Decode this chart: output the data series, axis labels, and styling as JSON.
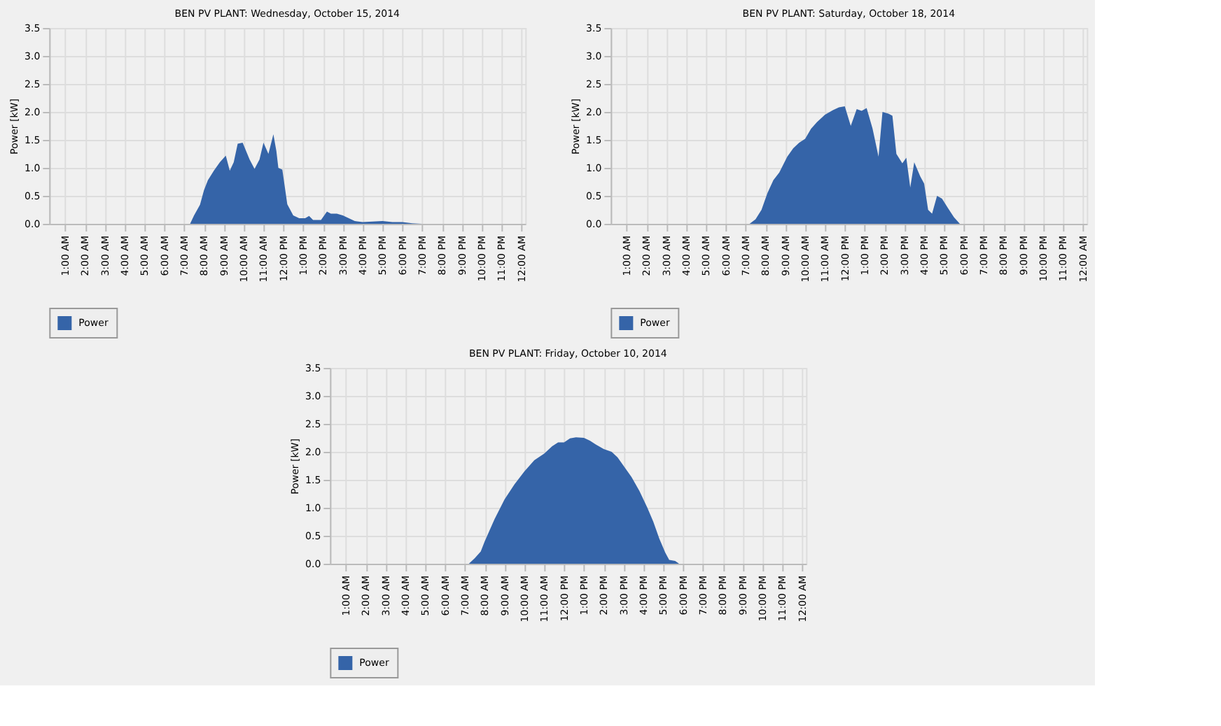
{
  "chart_data": [
    {
      "type": "area",
      "title": "BEN PV PLANT: Wednesday, October 15, 2014",
      "ylabel": "Power [kW]",
      "x": [
        0.25,
        7.3,
        7.5,
        7.8,
        8.0,
        8.2,
        8.5,
        8.8,
        9.1,
        9.3,
        9.5,
        9.7,
        9.95,
        10.3,
        10.55,
        10.8,
        11.0,
        11.25,
        11.5,
        11.65,
        11.75,
        11.95,
        12.2,
        12.5,
        12.8,
        13.1,
        13.3,
        13.5,
        13.9,
        14.2,
        14.4,
        14.7,
        15.0,
        15.3,
        15.6,
        16.0,
        16.5,
        17.0,
        17.5,
        18.0,
        18.5,
        19.0,
        24.2
      ],
      "series": [
        {
          "name": "Power",
          "color": "#3564a8",
          "values": [
            0,
            0,
            0.15,
            0.34,
            0.6,
            0.78,
            0.95,
            1.1,
            1.22,
            0.95,
            1.1,
            1.43,
            1.45,
            1.15,
            0.98,
            1.15,
            1.45,
            1.25,
            1.6,
            1.3,
            1.0,
            0.97,
            0.35,
            0.15,
            0.1,
            0.1,
            0.14,
            0.07,
            0.07,
            0.22,
            0.18,
            0.18,
            0.15,
            0.1,
            0.05,
            0.03,
            0.04,
            0.05,
            0.03,
            0.03,
            0.01,
            0,
            0
          ]
        }
      ],
      "xlim": [
        0.2,
        24.2
      ],
      "xticks": [
        {
          "value": 1,
          "label": "1:00 AM"
        },
        {
          "value": 2,
          "label": "2:00 AM"
        },
        {
          "value": 3,
          "label": "3:00 AM"
        },
        {
          "value": 4,
          "label": "4:00 AM"
        },
        {
          "value": 5,
          "label": "5:00 AM"
        },
        {
          "value": 6,
          "label": "6:00 AM"
        },
        {
          "value": 7,
          "label": "7:00 AM"
        },
        {
          "value": 8,
          "label": "8:00 AM"
        },
        {
          "value": 9,
          "label": "9:00 AM"
        },
        {
          "value": 10,
          "label": "10:00 AM"
        },
        {
          "value": 11,
          "label": "11:00 AM"
        },
        {
          "value": 12,
          "label": "12:00 PM"
        },
        {
          "value": 13,
          "label": "1:00 PM"
        },
        {
          "value": 14,
          "label": "2:00 PM"
        },
        {
          "value": 15,
          "label": "3:00 PM"
        },
        {
          "value": 16,
          "label": "4:00 PM"
        },
        {
          "value": 17,
          "label": "5:00 PM"
        },
        {
          "value": 18,
          "label": "6:00 PM"
        },
        {
          "value": 19,
          "label": "7:00 PM"
        },
        {
          "value": 20,
          "label": "8:00 PM"
        },
        {
          "value": 21,
          "label": "9:00 PM"
        },
        {
          "value": 22,
          "label": "10:00 PM"
        },
        {
          "value": 23,
          "label": "11:00 PM"
        },
        {
          "value": 24,
          "label": "12:00 AM"
        }
      ],
      "ylim": [
        0,
        3.5
      ],
      "yticks": [
        {
          "value": 0,
          "label": "0.0"
        },
        {
          "value": 0.5,
          "label": "0.5"
        },
        {
          "value": 1,
          "label": "1.0"
        },
        {
          "value": 1.5,
          "label": "1.5"
        },
        {
          "value": 2,
          "label": "2.0"
        },
        {
          "value": 2.5,
          "label": "2.5"
        },
        {
          "value": 3,
          "label": "3.0"
        },
        {
          "value": 3.5,
          "label": "3.5"
        }
      ],
      "grid": true,
      "legend": "bottom"
    },
    {
      "type": "area",
      "title": "BEN PV PLANT: Saturday, October 18, 2014",
      "ylabel": "Power [kW]",
      "x": [
        0.25,
        7.2,
        7.5,
        7.8,
        8.1,
        8.4,
        8.7,
        9.1,
        9.4,
        9.7,
        10.0,
        10.3,
        10.6,
        11.0,
        11.4,
        11.7,
        12.0,
        12.3,
        12.6,
        12.85,
        13.1,
        13.4,
        13.7,
        13.9,
        14.2,
        14.4,
        14.6,
        14.9,
        15.1,
        15.3,
        15.5,
        15.8,
        16.0,
        16.2,
        16.4,
        16.65,
        16.9,
        17.2,
        17.5,
        17.8,
        24.2
      ],
      "series": [
        {
          "name": "Power",
          "color": "#3564a8",
          "values": [
            0,
            0,
            0.08,
            0.25,
            0.55,
            0.78,
            0.92,
            1.2,
            1.35,
            1.45,
            1.52,
            1.7,
            1.82,
            1.95,
            2.03,
            2.08,
            2.1,
            1.75,
            2.05,
            2.02,
            2.07,
            1.7,
            1.2,
            2.0,
            1.97,
            1.93,
            1.25,
            1.08,
            1.18,
            0.65,
            1.1,
            0.85,
            0.72,
            0.25,
            0.18,
            0.5,
            0.45,
            0.28,
            0.12,
            0,
            0
          ]
        }
      ],
      "xlim": [
        0.2,
        24.2
      ],
      "xticks": [
        {
          "value": 1,
          "label": "1:00 AM"
        },
        {
          "value": 2,
          "label": "2:00 AM"
        },
        {
          "value": 3,
          "label": "3:00 AM"
        },
        {
          "value": 4,
          "label": "4:00 AM"
        },
        {
          "value": 5,
          "label": "5:00 AM"
        },
        {
          "value": 6,
          "label": "6:00 AM"
        },
        {
          "value": 7,
          "label": "7:00 AM"
        },
        {
          "value": 8,
          "label": "8:00 AM"
        },
        {
          "value": 9,
          "label": "9:00 AM"
        },
        {
          "value": 10,
          "label": "10:00 AM"
        },
        {
          "value": 11,
          "label": "11:00 AM"
        },
        {
          "value": 12,
          "label": "12:00 PM"
        },
        {
          "value": 13,
          "label": "1:00 PM"
        },
        {
          "value": 14,
          "label": "2:00 PM"
        },
        {
          "value": 15,
          "label": "3:00 PM"
        },
        {
          "value": 16,
          "label": "4:00 PM"
        },
        {
          "value": 17,
          "label": "5:00 PM"
        },
        {
          "value": 18,
          "label": "6:00 PM"
        },
        {
          "value": 19,
          "label": "7:00 PM"
        },
        {
          "value": 20,
          "label": "8:00 PM"
        },
        {
          "value": 21,
          "label": "9:00 PM"
        },
        {
          "value": 22,
          "label": "10:00 PM"
        },
        {
          "value": 23,
          "label": "11:00 PM"
        },
        {
          "value": 24,
          "label": "12:00 AM"
        }
      ],
      "ylim": [
        0,
        3.5
      ],
      "yticks": [
        {
          "value": 0,
          "label": "0.0"
        },
        {
          "value": 0.5,
          "label": "0.5"
        },
        {
          "value": 1,
          "label": "1.0"
        },
        {
          "value": 1.5,
          "label": "1.5"
        },
        {
          "value": 2,
          "label": "2.0"
        },
        {
          "value": 2.5,
          "label": "2.5"
        },
        {
          "value": 3,
          "label": "3.0"
        },
        {
          "value": 3.5,
          "label": "3.5"
        }
      ],
      "grid": true,
      "legend": "bottom"
    },
    {
      "type": "area",
      "title": "BEN PV PLANT: Friday, October 10, 2014",
      "ylabel": "Power [kW]",
      "x": [
        0.25,
        7.2,
        7.5,
        7.8,
        8.0,
        8.5,
        9.0,
        9.5,
        10.0,
        10.5,
        11.0,
        11.4,
        11.7,
        12.0,
        12.3,
        12.6,
        13.0,
        13.3,
        13.6,
        14.0,
        14.4,
        14.7,
        15.0,
        15.4,
        15.8,
        16.2,
        16.5,
        16.8,
        17.1,
        17.3,
        17.6,
        17.8,
        24.2
      ],
      "series": [
        {
          "name": "Power",
          "color": "#3564a8",
          "values": [
            0,
            0,
            0.1,
            0.22,
            0.4,
            0.8,
            1.15,
            1.42,
            1.65,
            1.85,
            1.97,
            2.1,
            2.17,
            2.17,
            2.24,
            2.26,
            2.25,
            2.2,
            2.13,
            2.05,
            2.0,
            1.9,
            1.75,
            1.55,
            1.3,
            1.0,
            0.75,
            0.45,
            0.2,
            0.07,
            0.05,
            0,
            0
          ]
        }
      ],
      "xlim": [
        0.2,
        24.2
      ],
      "xticks": [
        {
          "value": 1,
          "label": "1:00 AM"
        },
        {
          "value": 2,
          "label": "2:00 AM"
        },
        {
          "value": 3,
          "label": "3:00 AM"
        },
        {
          "value": 4,
          "label": "4:00 AM"
        },
        {
          "value": 5,
          "label": "5:00 AM"
        },
        {
          "value": 6,
          "label": "6:00 AM"
        },
        {
          "value": 7,
          "label": "7:00 AM"
        },
        {
          "value": 8,
          "label": "8:00 AM"
        },
        {
          "value": 9,
          "label": "9:00 AM"
        },
        {
          "value": 10,
          "label": "10:00 AM"
        },
        {
          "value": 11,
          "label": "11:00 AM"
        },
        {
          "value": 12,
          "label": "12:00 PM"
        },
        {
          "value": 13,
          "label": "1:00 PM"
        },
        {
          "value": 14,
          "label": "2:00 PM"
        },
        {
          "value": 15,
          "label": "3:00 PM"
        },
        {
          "value": 16,
          "label": "4:00 PM"
        },
        {
          "value": 17,
          "label": "5:00 PM"
        },
        {
          "value": 18,
          "label": "6:00 PM"
        },
        {
          "value": 19,
          "label": "7:00 PM"
        },
        {
          "value": 20,
          "label": "8:00 PM"
        },
        {
          "value": 21,
          "label": "9:00 PM"
        },
        {
          "value": 22,
          "label": "10:00 PM"
        },
        {
          "value": 23,
          "label": "11:00 PM"
        },
        {
          "value": 24,
          "label": "12:00 AM"
        }
      ],
      "ylim": [
        0,
        3.5
      ],
      "yticks": [
        {
          "value": 0,
          "label": "0.0"
        },
        {
          "value": 0.5,
          "label": "0.5"
        },
        {
          "value": 1,
          "label": "1.0"
        },
        {
          "value": 1.5,
          "label": "1.5"
        },
        {
          "value": 2,
          "label": "2.0"
        },
        {
          "value": 2.5,
          "label": "2.5"
        },
        {
          "value": 3,
          "label": "3.0"
        },
        {
          "value": 3.5,
          "label": "3.5"
        }
      ],
      "grid": true,
      "legend": "bottom"
    }
  ]
}
